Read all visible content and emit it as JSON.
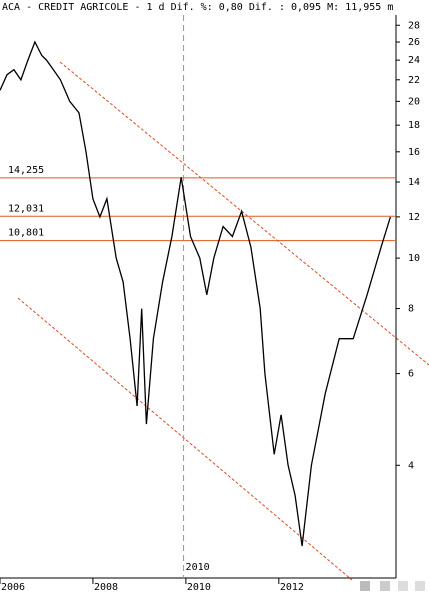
{
  "chart_data": {
    "type": "line",
    "title": "ACA - CREDIT AGRICOLE -  1 d Dif. %: 0,80 Dif. : 0,095 M: 11,955 m",
    "log_scale": true,
    "xlim": [
      2006,
      2014.5
    ],
    "xticks": [
      2006,
      2008,
      2010,
      2012
    ],
    "ylim": [
      2.43,
      29.3
    ],
    "yticks": [
      4,
      6,
      8,
      10,
      12,
      14,
      16,
      18,
      20,
      22,
      24,
      26,
      28
    ],
    "cursor_x": {
      "value": 2009.95,
      "label": "2010"
    },
    "levels": [
      {
        "value": 14.255,
        "label": "14,255"
      },
      {
        "value": 12.031,
        "label": "12,031"
      },
      {
        "value": 10.801,
        "label": "10,801"
      }
    ],
    "level_color": "#e05a1e",
    "series": [
      {
        "name": "ACA",
        "color": "#000000",
        "x": [
          2006.0,
          2006.15,
          2006.3,
          2006.45,
          2006.6,
          2006.75,
          2006.9,
          2007.0,
          2007.15,
          2007.3,
          2007.5,
          2007.7,
          2007.85,
          2008.0,
          2008.15,
          2008.3,
          2008.5,
          2008.65,
          2008.8,
          2008.95,
          2009.05,
          2009.15,
          2009.3,
          2009.5,
          2009.7,
          2009.9,
          2010.1,
          2010.3,
          2010.45,
          2010.6,
          2010.8,
          2011.0,
          2011.2,
          2011.4,
          2011.6,
          2011.7,
          2011.9,
          2012.05,
          2012.2,
          2012.35,
          2012.5,
          2012.7,
          2013.0,
          2013.3,
          2013.6,
          2013.9,
          2014.2,
          2014.4
        ],
        "values": [
          21,
          22.5,
          23,
          22,
          24,
          26,
          24.5,
          24,
          23,
          22,
          20,
          19,
          16,
          13,
          12,
          13,
          10,
          9,
          7,
          5.2,
          8,
          4.8,
          7,
          9,
          11,
          14.3,
          11,
          10,
          8.5,
          10,
          11.5,
          11,
          12.3,
          10.5,
          8,
          6,
          4.2,
          5,
          4,
          3.5,
          2.8,
          4,
          5.5,
          7,
          7,
          8.5,
          10.5,
          12
        ]
      }
    ]
  }
}
